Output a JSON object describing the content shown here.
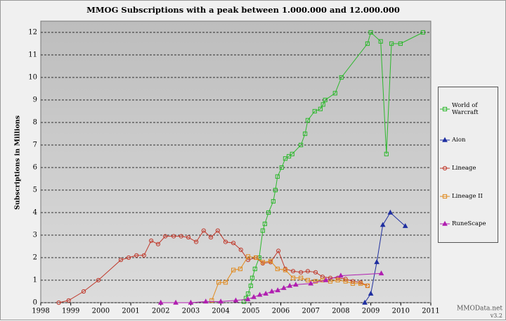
{
  "chart_data": {
    "type": "line",
    "title": "MMOG Subscriptions with a peak between 1.000.000 and 12.000.000",
    "y_label": "Subscriptions in Millions",
    "source": "MMOData.net",
    "version": "v3.2",
    "xlim": [
      1998,
      2011
    ],
    "xticks": [
      1998,
      1999,
      2000,
      2001,
      2002,
      2003,
      2004,
      2005,
      2006,
      2007,
      2008,
      2009,
      2010,
      2011
    ],
    "ylim": [
      0,
      12
    ],
    "yticks": [
      0,
      1,
      2,
      3,
      4,
      5,
      6,
      7,
      8,
      9,
      10,
      11,
      12
    ],
    "grid": true,
    "legend": "right",
    "series": [
      {
        "name": "World of Warcraft",
        "color": "#2db82d",
        "marker": "square",
        "x": [
          2004.77,
          2004.84,
          2004.91,
          2005.0,
          2005.05,
          2005.14,
          2005.28,
          2005.4,
          2005.47,
          2005.59,
          2005.75,
          2005.82,
          2005.89,
          2006.03,
          2006.15,
          2006.27,
          2006.38,
          2006.67,
          2006.81,
          2006.9,
          2007.13,
          2007.32,
          2007.41,
          2007.48,
          2007.81,
          2008.02,
          2008.89,
          2009.0,
          2009.33,
          2009.52,
          2009.69,
          2009.99,
          2010.74
        ],
        "values": [
          0.05,
          0.2,
          0.4,
          0.75,
          1.1,
          1.5,
          2.0,
          3.2,
          3.5,
          4.0,
          4.5,
          5.0,
          5.6,
          6.0,
          6.4,
          6.5,
          6.6,
          7.0,
          7.5,
          8.1,
          8.5,
          8.6,
          8.8,
          9.0,
          9.3,
          10.0,
          11.5,
          12.0,
          11.6,
          6.6,
          11.5,
          11.5,
          12.0
        ]
      },
      {
        "name": "Aion",
        "color": "#1f2fa0",
        "marker": "triangle",
        "x": [
          2008.8,
          2009.0,
          2009.2,
          2009.4,
          2009.65,
          2010.15
        ],
        "values": [
          0,
          0.4,
          1.8,
          3.45,
          4.0,
          3.4
        ]
      },
      {
        "name": "Lineage",
        "color": "#c0392b",
        "marker": "circle",
        "x": [
          1998.6,
          1998.93,
          1999.43,
          1999.92,
          2000.67,
          2000.93,
          2001.19,
          2001.44,
          2001.68,
          2001.91,
          2002.15,
          2002.43,
          2002.68,
          2002.92,
          2003.18,
          2003.43,
          2003.67,
          2003.9,
          2004.16,
          2004.42,
          2004.67,
          2004.91,
          2005.17,
          2005.4,
          2005.66,
          2005.92,
          2006.15,
          2006.41,
          2006.67,
          2006.9,
          2007.16,
          2007.39,
          2007.65,
          2007.9,
          2008.16,
          2008.4,
          2008.66,
          2008.89
        ],
        "values": [
          0,
          0.1,
          0.5,
          1.0,
          1.9,
          2.0,
          2.1,
          2.1,
          2.75,
          2.6,
          2.95,
          2.95,
          2.95,
          2.9,
          2.7,
          3.2,
          2.9,
          3.2,
          2.7,
          2.65,
          2.35,
          1.9,
          2.0,
          1.75,
          1.8,
          2.3,
          1.5,
          1.4,
          1.35,
          1.4,
          1.35,
          1.15,
          1.1,
          1.1,
          1.05,
          0.95,
          0.9,
          0.75
        ]
      },
      {
        "name": "Lineage II",
        "color": "#e08a1e",
        "marker": "square",
        "x": [
          2003.7,
          2003.93,
          2004.16,
          2004.42,
          2004.65,
          2004.91,
          2005.17,
          2005.4,
          2005.66,
          2005.89,
          2006.15,
          2006.41,
          2006.67,
          2006.9,
          2007.16,
          2007.39,
          2007.65,
          2007.9,
          2008.16,
          2008.4,
          2008.66,
          2008.89
        ],
        "values": [
          0.1,
          0.9,
          0.9,
          1.45,
          1.5,
          2.05,
          2.0,
          1.8,
          1.85,
          1.5,
          1.45,
          1.1,
          1.1,
          1.0,
          0.95,
          1.0,
          0.95,
          1.0,
          0.95,
          0.85,
          0.85,
          0.75
        ]
      },
      {
        "name": "RuneScape",
        "color": "#b01fb0",
        "marker": "triangle",
        "x": [
          2002.0,
          2002.5,
          2003.0,
          2003.5,
          2004.0,
          2004.5,
          2004.9,
          2005.1,
          2005.3,
          2005.5,
          2005.7,
          2005.9,
          2006.1,
          2006.3,
          2006.5,
          2007.0,
          2007.5,
          2008.0,
          2009.35
        ],
        "values": [
          0,
          0,
          0,
          0.05,
          0.05,
          0.1,
          0.15,
          0.25,
          0.35,
          0.4,
          0.5,
          0.55,
          0.65,
          0.75,
          0.8,
          0.85,
          1.0,
          1.2,
          1.3
        ]
      }
    ]
  }
}
